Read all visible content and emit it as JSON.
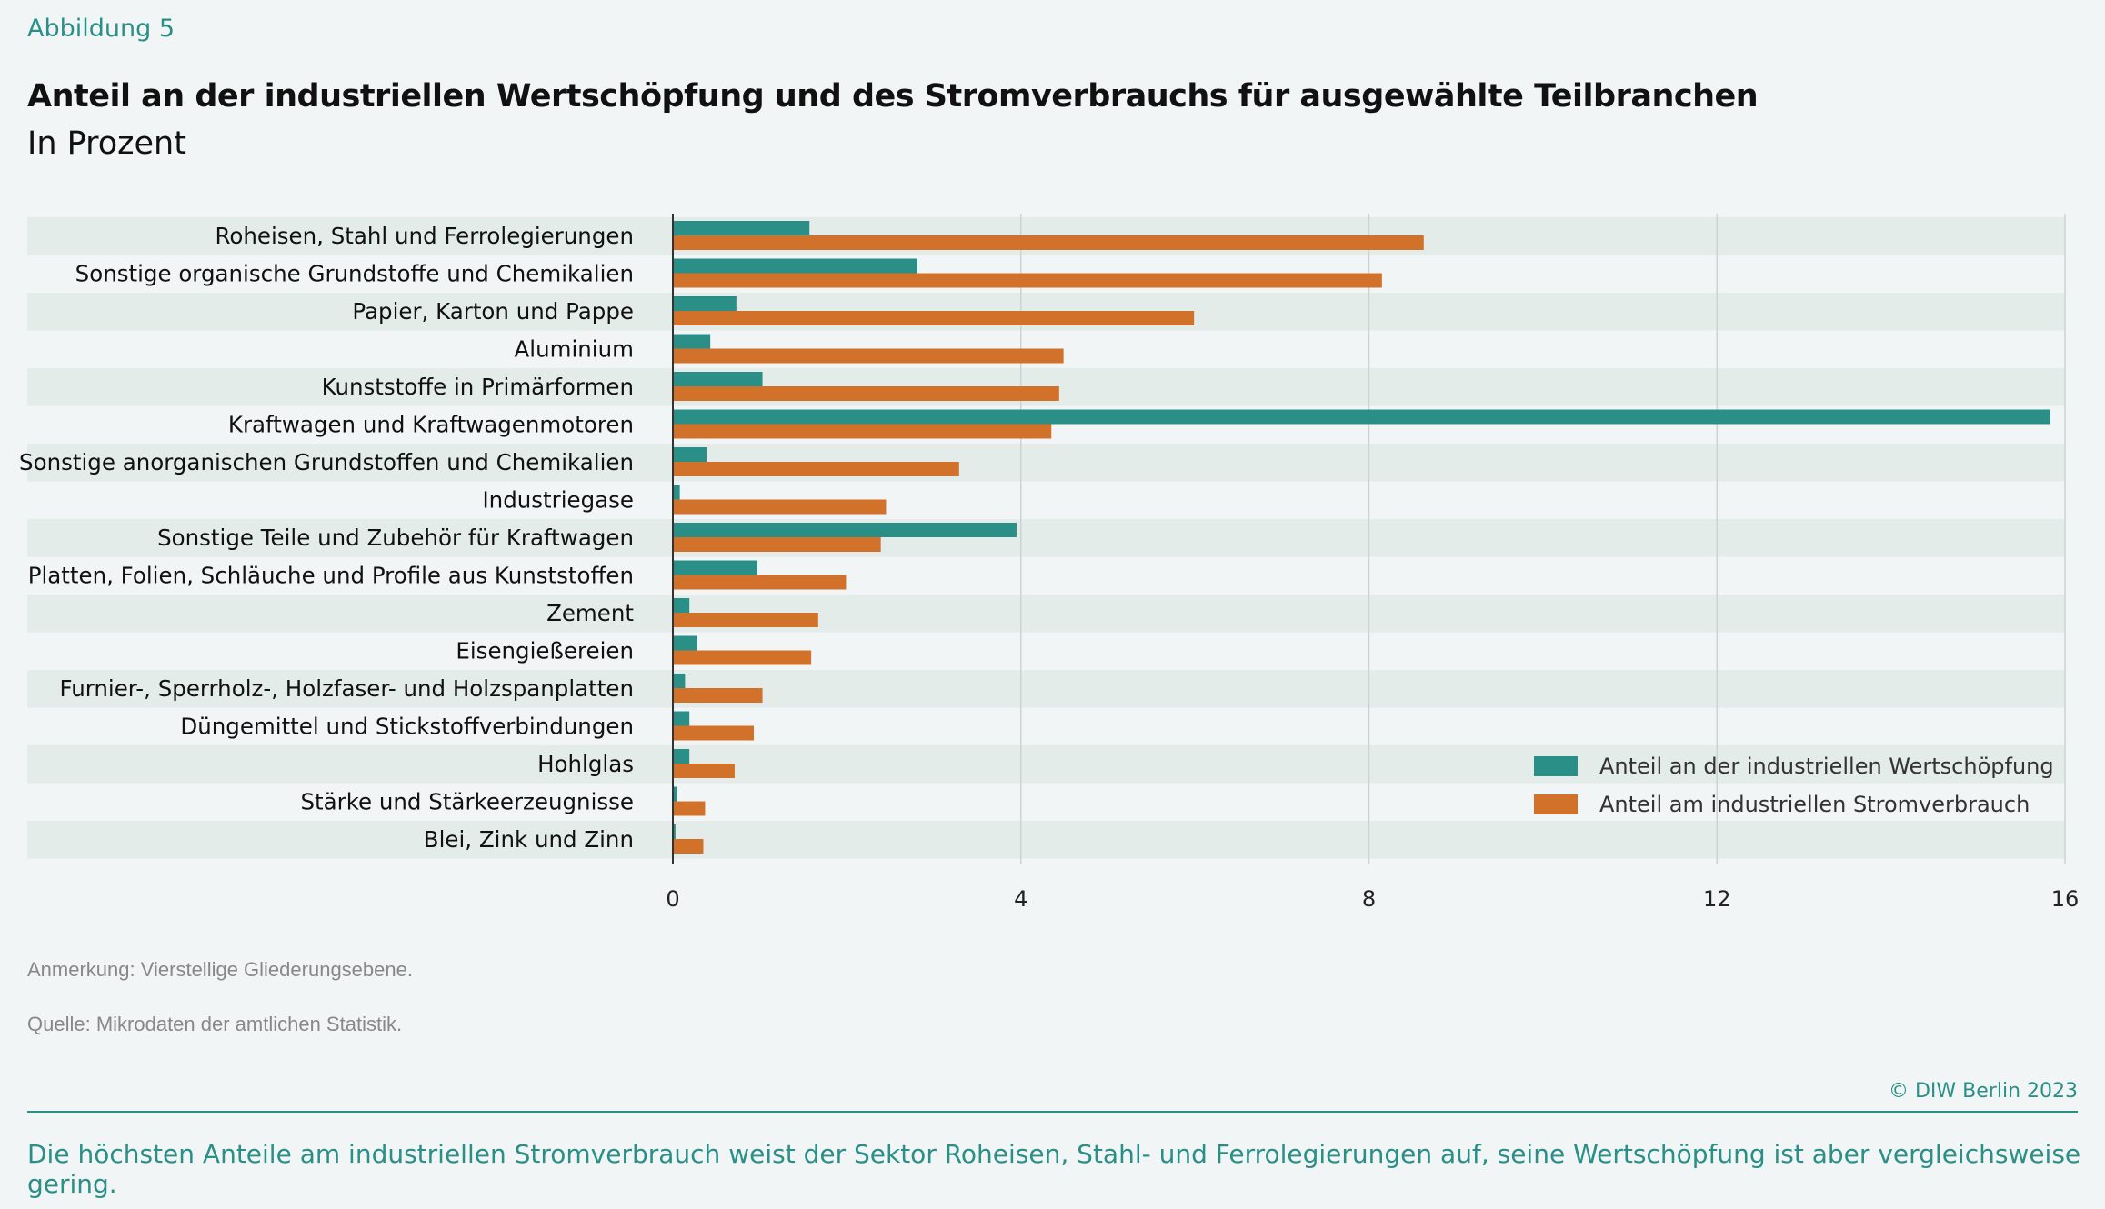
{
  "header": {
    "figure": "Abbildung 5",
    "title": "Anteil an der industriellen Wertschöpfung und des Stromverbrauchs für ausgewählte Teilbranchen",
    "subtitle": "In Prozent"
  },
  "chart_data": {
    "type": "bar",
    "orientation": "horizontal",
    "title": "Anteil an der industriellen Wertschöpfung und des Stromverbrauchs für ausgewählte Teilbranchen",
    "subtitle": "In Prozent",
    "categories": [
      "Roheisen, Stahl und Ferrolegierungen",
      "Sonstige organische Grundstoffe und Chemikalien",
      "Papier, Karton und Pappe",
      "Aluminium",
      "Kunststoffe in Primärformen",
      "Kraftwagen und Kraftwagenmotoren",
      "Sonstige anorganischen Grundstoffen und Chemikalien",
      "Industriegase",
      "Sonstige Teile und Zubehör für Kraftwagen",
      "Platten, Folien, Schläuche und Profile aus Kunststoffen",
      "Zement",
      "Eisengießereien",
      "Furnier-, Sperrholz-, Holzfaser- und Holzspanplatten",
      "Düngemittel und Stickstoffverbindungen",
      "Hohlglas",
      "Stärke und Stärkeerzeugnisse",
      "Blei, Zink und Zinn"
    ],
    "series": [
      {
        "name": "Anteil an der industriellen Wertschöpfung",
        "color": "#2a9087",
        "values": [
          1.57,
          2.81,
          0.73,
          0.43,
          1.03,
          15.83,
          0.39,
          0.08,
          3.95,
          0.97,
          0.19,
          0.28,
          0.14,
          0.19,
          0.19,
          0.05,
          0.03
        ]
      },
      {
        "name": "Anteil am industriellen Stromverbrauch",
        "color": "#d2722a",
        "values": [
          8.63,
          8.15,
          5.99,
          4.49,
          4.44,
          4.35,
          3.29,
          2.45,
          2.39,
          1.99,
          1.67,
          1.59,
          1.03,
          0.93,
          0.71,
          0.37,
          0.35
        ]
      }
    ],
    "xlim": [
      0,
      16
    ],
    "xticks": [
      "0",
      "4",
      "8",
      "12",
      "16"
    ],
    "grid": true,
    "legend": "bottom-right"
  },
  "footer": {
    "note": "Anmerkung: Vierstellige Gliederungsebene.",
    "source": "Quelle: Mikrodaten der amtlichen Statistik.",
    "copyright": "© DIW Berlin 2023",
    "caption": "Die höchsten Anteile am industriellen Stromverbrauch weist der Sektor Roheisen, Stahl- und Ferrolegierungen auf, seine Wertschöpfung ist aber vergleichsweise gering."
  }
}
